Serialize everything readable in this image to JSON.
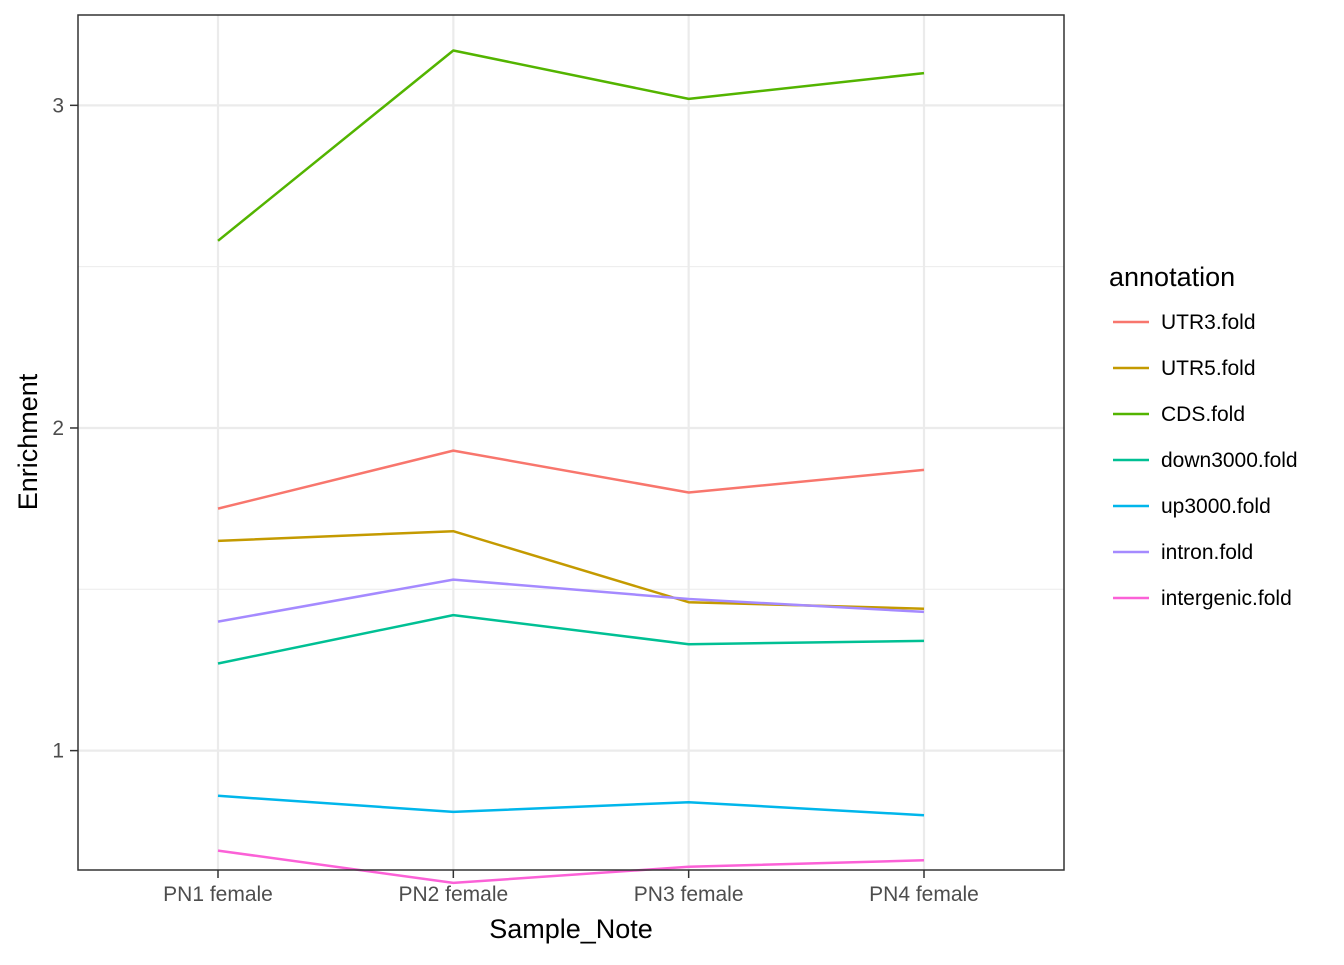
{
  "chart_data": {
    "type": "line",
    "xlabel": "Sample_Note",
    "ylabel": "Enrichment",
    "categories": [
      "PN1 female",
      "PN2 female",
      "PN3 female",
      "PN4 female"
    ],
    "ylim": [
      0.63,
      3.28
    ],
    "yticks": [
      1,
      2,
      3
    ],
    "grid": true,
    "legend": {
      "title": "annotation",
      "position": "right"
    },
    "series": [
      {
        "name": "UTR3.fold",
        "color": "#F8766D",
        "values": [
          1.75,
          1.93,
          1.8,
          1.87
        ]
      },
      {
        "name": "UTR5.fold",
        "color": "#C49A00",
        "values": [
          1.65,
          1.68,
          1.46,
          1.44
        ]
      },
      {
        "name": "CDS.fold",
        "color": "#53B400",
        "values": [
          2.58,
          3.17,
          3.02,
          3.1
        ]
      },
      {
        "name": "down3000.fold",
        "color": "#00C094",
        "values": [
          1.27,
          1.42,
          1.33,
          1.34
        ]
      },
      {
        "name": "up3000.fold",
        "color": "#00B6EB",
        "values": [
          0.86,
          0.81,
          0.84,
          0.8
        ]
      },
      {
        "name": "intron.fold",
        "color": "#A58AFF",
        "values": [
          1.4,
          1.53,
          1.47,
          1.43
        ]
      },
      {
        "name": "intergenic.fold",
        "color": "#FB61D7",
        "values": [
          0.69,
          0.59,
          0.64,
          0.66
        ]
      }
    ]
  }
}
